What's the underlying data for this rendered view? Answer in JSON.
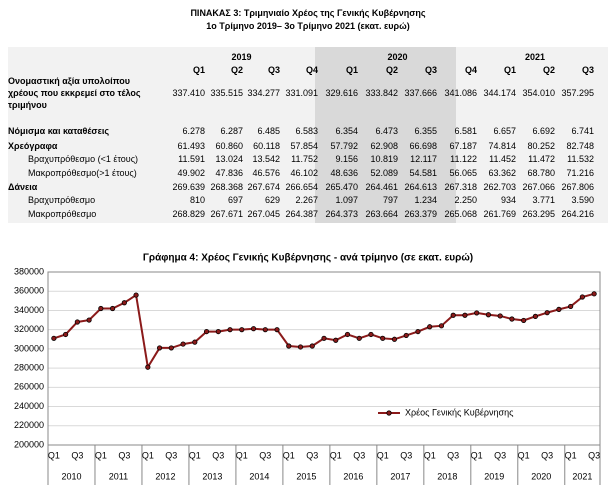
{
  "table": {
    "title": [
      "ΠΙΝΑΚΑΣ 3: Τριμηνιαίο Χρέος της Γενικής Κυβέρνησης",
      "1ο Τρίμηνο 2019– 3ο Τρίμηνο 2021 (εκατ. ευρώ)"
    ],
    "years": [
      "2019",
      "2020",
      "2021"
    ],
    "quarters": [
      "Q1",
      "Q2",
      "Q3",
      "Q4",
      "Q1",
      "Q2",
      "Q3",
      "Q4",
      "Q1",
      "Q2",
      "Q3"
    ],
    "rows": [
      {
        "label": "Ονομαστική αξία υπολοίπου χρέους που εκκρεμεί στο τέλος τριμήνου",
        "values": [
          "337.410",
          "335.515",
          "334.277",
          "331.091",
          "329.616",
          "333.842",
          "337.666",
          "341.086",
          "344.174",
          "354.010",
          "357.295"
        ]
      },
      {
        "label": "Νόμισμα και καταθέσεις",
        "values": [
          "6.278",
          "6.287",
          "6.485",
          "6.583",
          "6.354",
          "6.473",
          "6.355",
          "6.581",
          "6.657",
          "6.692",
          "6.741"
        ]
      },
      {
        "label": "Χρεόγραφα",
        "values": [
          "61.493",
          "60.860",
          "60.118",
          "57.854",
          "57.792",
          "62.908",
          "66.698",
          "67.187",
          "74.814",
          "80.252",
          "82.748"
        ]
      },
      {
        "label": "Βραχυπρόθεσμο (<1 έτους)",
        "values": [
          "11.591",
          "13.024",
          "13.542",
          "11.752",
          "9.156",
          "10.819",
          "12.117",
          "11.122",
          "11.452",
          "11.472",
          "11.532"
        ]
      },
      {
        "label": "Μακροπρόθεσμο(>1 έτους)",
        "values": [
          "49.902",
          "47.836",
          "46.576",
          "46.102",
          "48.636",
          "52.089",
          "54.581",
          "56.065",
          "63.362",
          "68.780",
          "71.216"
        ]
      },
      {
        "label": "Δάνεια",
        "values": [
          "269.639",
          "268.368",
          "267.674",
          "266.654",
          "265.470",
          "264.461",
          "264.613",
          "267.318",
          "262.703",
          "267.066",
          "267.806"
        ]
      },
      {
        "label": "Βραχυπρόθεσμο",
        "values": [
          "810",
          "697",
          "629",
          "2.267",
          "1.097",
          "797",
          "1.234",
          "2.250",
          "934",
          "3.771",
          "3.590"
        ]
      },
      {
        "label": "Μακροπρόθεσμο",
        "values": [
          "268.829",
          "267.671",
          "267.045",
          "264.387",
          "264.373",
          "263.664",
          "263.379",
          "265.068",
          "261.769",
          "263.295",
          "264.216"
        ]
      }
    ]
  },
  "chart_data": {
    "type": "line",
    "title": "Γράφημα 4: Χρέος Γενικής Κυβέρνησης - ανά τρίμηνο (σε εκατ. ευρώ)",
    "categories": [
      "Q1",
      null,
      "Q3",
      null,
      "Q1",
      null,
      "Q3",
      null,
      "Q1",
      null,
      "Q3",
      null,
      "Q1",
      null,
      "Q3",
      null,
      "Q1",
      null,
      "Q3",
      null,
      "Q1",
      null,
      "Q3",
      null,
      "Q1",
      null,
      "Q3",
      null,
      "Q1",
      null,
      "Q3",
      null,
      "Q1",
      null,
      "Q3",
      null,
      "Q1",
      null,
      "Q3",
      null,
      "Q1",
      null,
      "Q3",
      null,
      "Q1",
      null,
      "Q3"
    ],
    "category_groups": [
      "2010",
      "2011",
      "2012",
      "2013",
      "2014",
      "2015",
      "2016",
      "2017",
      "2018",
      "2019",
      "2020",
      "2021"
    ],
    "series": [
      {
        "name": "Χρέος Γενικής Κυβέρνησης",
        "color": "#8b1a1a",
        "values": [
          311000,
          315000,
          328000,
          330000,
          342000,
          342000,
          348000,
          356000,
          281000,
          301000,
          301000,
          305000,
          307000,
          318000,
          318000,
          320000,
          320000,
          321000,
          320000,
          320000,
          303000,
          302000,
          303000,
          311000,
          309000,
          315000,
          311000,
          315000,
          311000,
          310000,
          314000,
          318000,
          323000,
          324000,
          335000,
          335000,
          337410,
          335515,
          334277,
          331091,
          329616,
          333842,
          337666,
          341086,
          344174,
          354010,
          357295
        ]
      }
    ],
    "ylim": [
      200000,
      380000
    ],
    "yticks": [
      200000,
      220000,
      240000,
      260000,
      280000,
      300000,
      320000,
      340000,
      360000,
      380000
    ],
    "grid": true,
    "legend": "lower right"
  }
}
